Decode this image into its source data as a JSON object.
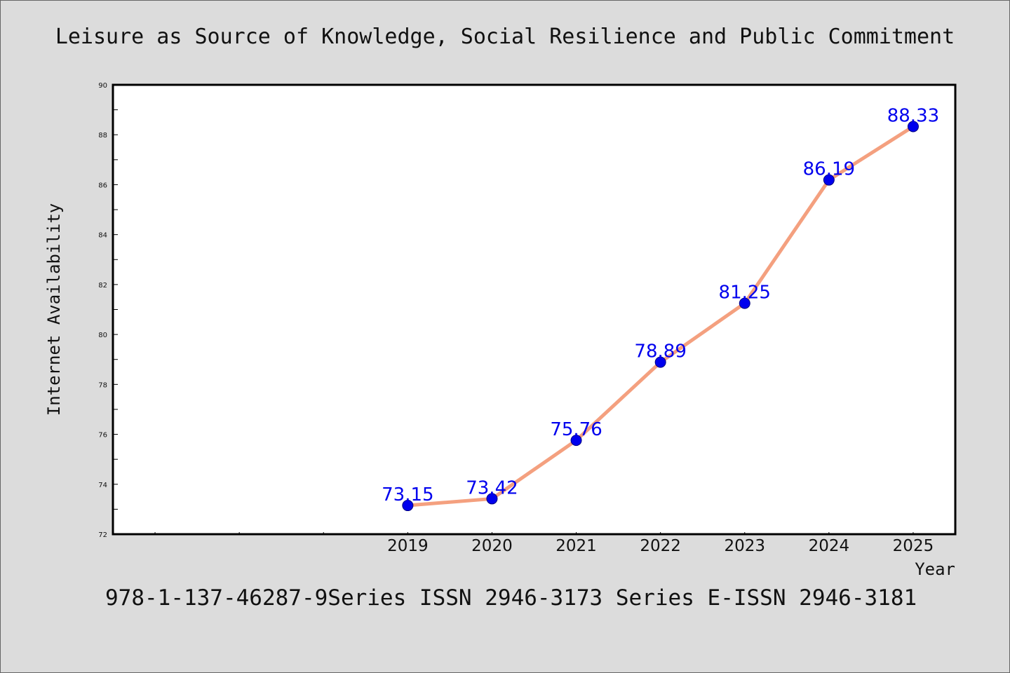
{
  "colors": {
    "background": "#dcdcdc",
    "plot_background": "#ffffff",
    "line": "#f4a07f",
    "marker": "#0000ee",
    "data_label": "#0000ee",
    "axis": "#000000"
  },
  "caption": "978-1-137-46287-9Series ISSN 2946-3173 Series E-ISSN 2946-3181",
  "chart_data": {
    "type": "line",
    "title": "Leisure as Source of Knowledge, Social Resilience and Public Commitment",
    "xlabel": "Year",
    "ylabel": "Internet Availability",
    "x": [
      "2019",
      "2020",
      "2021",
      "2022",
      "2023",
      "2024",
      "2025"
    ],
    "x_axis_slots": 10,
    "series": [
      {
        "values": [
          73.15,
          73.42,
          75.76,
          78.89,
          81.25,
          86.19,
          88.33
        ],
        "labels": [
          "73.15",
          "73.42",
          "75.76",
          "78.89",
          "81.25",
          "86.19",
          "88.33"
        ]
      }
    ],
    "ylim": [
      72,
      90
    ],
    "y_ticks": [
      72,
      74,
      76,
      78,
      80,
      82,
      84,
      86,
      88,
      90
    ],
    "grid": false,
    "legend": "none"
  }
}
